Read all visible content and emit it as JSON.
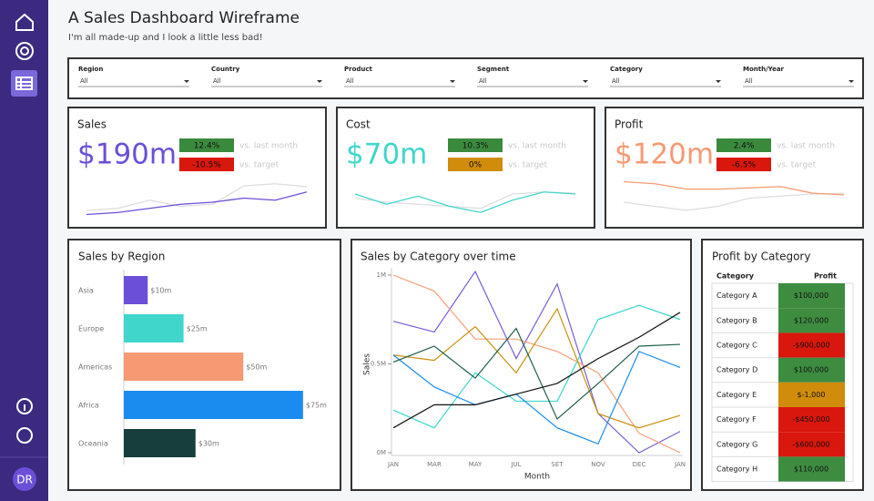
{
  "sidebar": {
    "avatar": "DR"
  },
  "header": {
    "title": "A Sales Dashboard Wireframe",
    "subtitle": "I'm all made-up and I look a little less bad!"
  },
  "filters": [
    {
      "label": "Region",
      "value": "All"
    },
    {
      "label": "Country",
      "value": "All"
    },
    {
      "label": "Product",
      "value": "All"
    },
    {
      "label": "Segment",
      "value": "All"
    },
    {
      "label": "Category",
      "value": "All"
    },
    {
      "label": "Month/Year",
      "value": "All"
    }
  ],
  "kpis": [
    {
      "title": "Sales",
      "value": "$190m",
      "color": "#6c4fd8",
      "badges": [
        {
          "text": "12.4%",
          "note": "vs. last month",
          "color": "#3a8a3e"
        },
        {
          "text": "-10.5%",
          "note": "vs. target",
          "color": "#d9170d"
        }
      ],
      "spark": {
        "ylim": [
          0,
          1
        ],
        "series": [
          {
            "color": "#dddddd",
            "values": [
              0.2,
              0.25,
              0.45,
              0.3,
              0.35,
              0.8,
              0.85,
              0.78
            ]
          },
          {
            "color": "#6c4fd8",
            "values": [
              0.1,
              0.15,
              0.25,
              0.35,
              0.4,
              0.5,
              0.45,
              0.65
            ]
          }
        ]
      }
    },
    {
      "title": "Cost",
      "value": "$70m",
      "color": "#40d6cc",
      "badges": [
        {
          "text": "10.3%",
          "note": "vs. last month",
          "color": "#3a8a3e"
        },
        {
          "text": "0%",
          "note": "vs. target",
          "color": "#d08c0a"
        }
      ],
      "spark": {
        "ylim": [
          0,
          1
        ],
        "series": [
          {
            "color": "#dddddd",
            "values": [
              0.5,
              0.4,
              0.35,
              0.3,
              0.25,
              0.6,
              0.65,
              0.62
            ]
          },
          {
            "color": "#40d6cc",
            "values": [
              0.6,
              0.35,
              0.55,
              0.3,
              0.15,
              0.45,
              0.65,
              0.6
            ]
          }
        ]
      }
    },
    {
      "title": "Profit",
      "value": "$120m",
      "color": "#f59a72",
      "badges": [
        {
          "text": "2.4%",
          "note": "vs. last month",
          "color": "#3a8a3e"
        },
        {
          "text": "-6.5%",
          "note": "vs. target",
          "color": "#d9170d"
        }
      ],
      "spark": {
        "ylim": [
          0,
          1
        ],
        "series": [
          {
            "color": "#dddddd",
            "values": [
              0.4,
              0.3,
              0.2,
              0.3,
              0.5,
              0.55,
              0.6,
              0.62
            ]
          },
          {
            "color": "#f59a72",
            "values": [
              0.9,
              0.85,
              0.72,
              0.72,
              0.75,
              0.78,
              0.62,
              0.58
            ]
          }
        ]
      }
    }
  ],
  "region_chart": {
    "type": "bar",
    "title": "Sales by Region",
    "categories": [
      "Asia",
      "Europe",
      "Americas",
      "Africa",
      "Oceania"
    ],
    "values": [
      10,
      25,
      50,
      75,
      30
    ],
    "value_labels": [
      "$10m",
      "$25m",
      "$50m",
      "$75m",
      "$30m"
    ],
    "colors": [
      "#6c4fd8",
      "#40d6cc",
      "#f59a72",
      "#1a8cf0",
      "#173d3c"
    ],
    "xlim": [
      0,
      80
    ]
  },
  "category_chart": {
    "type": "line",
    "title": "Sales by Category over time",
    "x_label": "Month",
    "y_label": "Sales",
    "categories": [
      "JAN",
      "MAR",
      "MAY",
      "JUL",
      "SET",
      "NOV",
      "DEC",
      "JAN"
    ],
    "ylim": [
      0,
      1000000
    ],
    "yticks": [
      {
        "value": 0,
        "label": "0M"
      },
      {
        "value": 500000,
        "label": "0.5M"
      },
      {
        "value": 1000000,
        "label": "1M"
      }
    ],
    "series": [
      {
        "color": "#7b5cd6",
        "values": [
          740000,
          680000,
          1020000,
          530000,
          950000,
          220000,
          0,
          120000
        ]
      },
      {
        "color": "#f5a07a",
        "values": [
          1000000,
          910000,
          640000,
          640000,
          570000,
          450000,
          110000,
          0
        ]
      },
      {
        "color": "#3fd6cc",
        "values": [
          240000,
          140000,
          450000,
          290000,
          290000,
          750000,
          830000,
          750000
        ]
      },
      {
        "color": "#c8920f",
        "values": [
          550000,
          520000,
          710000,
          450000,
          810000,
          220000,
          140000,
          210000
        ]
      },
      {
        "color": "#1a8cf0",
        "values": [
          550000,
          370000,
          270000,
          330000,
          140000,
          50000,
          570000,
          480000
        ]
      },
      {
        "color": "#1f5e4a",
        "values": [
          510000,
          600000,
          420000,
          700000,
          190000,
          390000,
          600000,
          610000
        ]
      },
      {
        "color": "#111111",
        "values": [
          140000,
          270000,
          270000,
          330000,
          390000,
          530000,
          650000,
          790000
        ]
      }
    ]
  },
  "profit_table": {
    "title": "Profit by Category",
    "columns": [
      "Category",
      "Profit"
    ],
    "rows": [
      {
        "category": "Category A",
        "profit": "$100,000",
        "color": "#3d8c40"
      },
      {
        "category": "Category B",
        "profit": "$120,000",
        "color": "#3d8c40"
      },
      {
        "category": "Category C",
        "profit": "-$900,000",
        "color": "#d9170d"
      },
      {
        "category": "Category D",
        "profit": "$100,000",
        "color": "#3d8c40"
      },
      {
        "category": "Category E",
        "profit": "$-1,000",
        "color": "#d08c0a"
      },
      {
        "category": "Category F",
        "profit": "-$450,000",
        "color": "#d9170d"
      },
      {
        "category": "Category G",
        "profit": "-$600,000",
        "color": "#d9170d"
      },
      {
        "category": "Category H",
        "profit": "$110,000",
        "color": "#3d8c40"
      }
    ]
  }
}
